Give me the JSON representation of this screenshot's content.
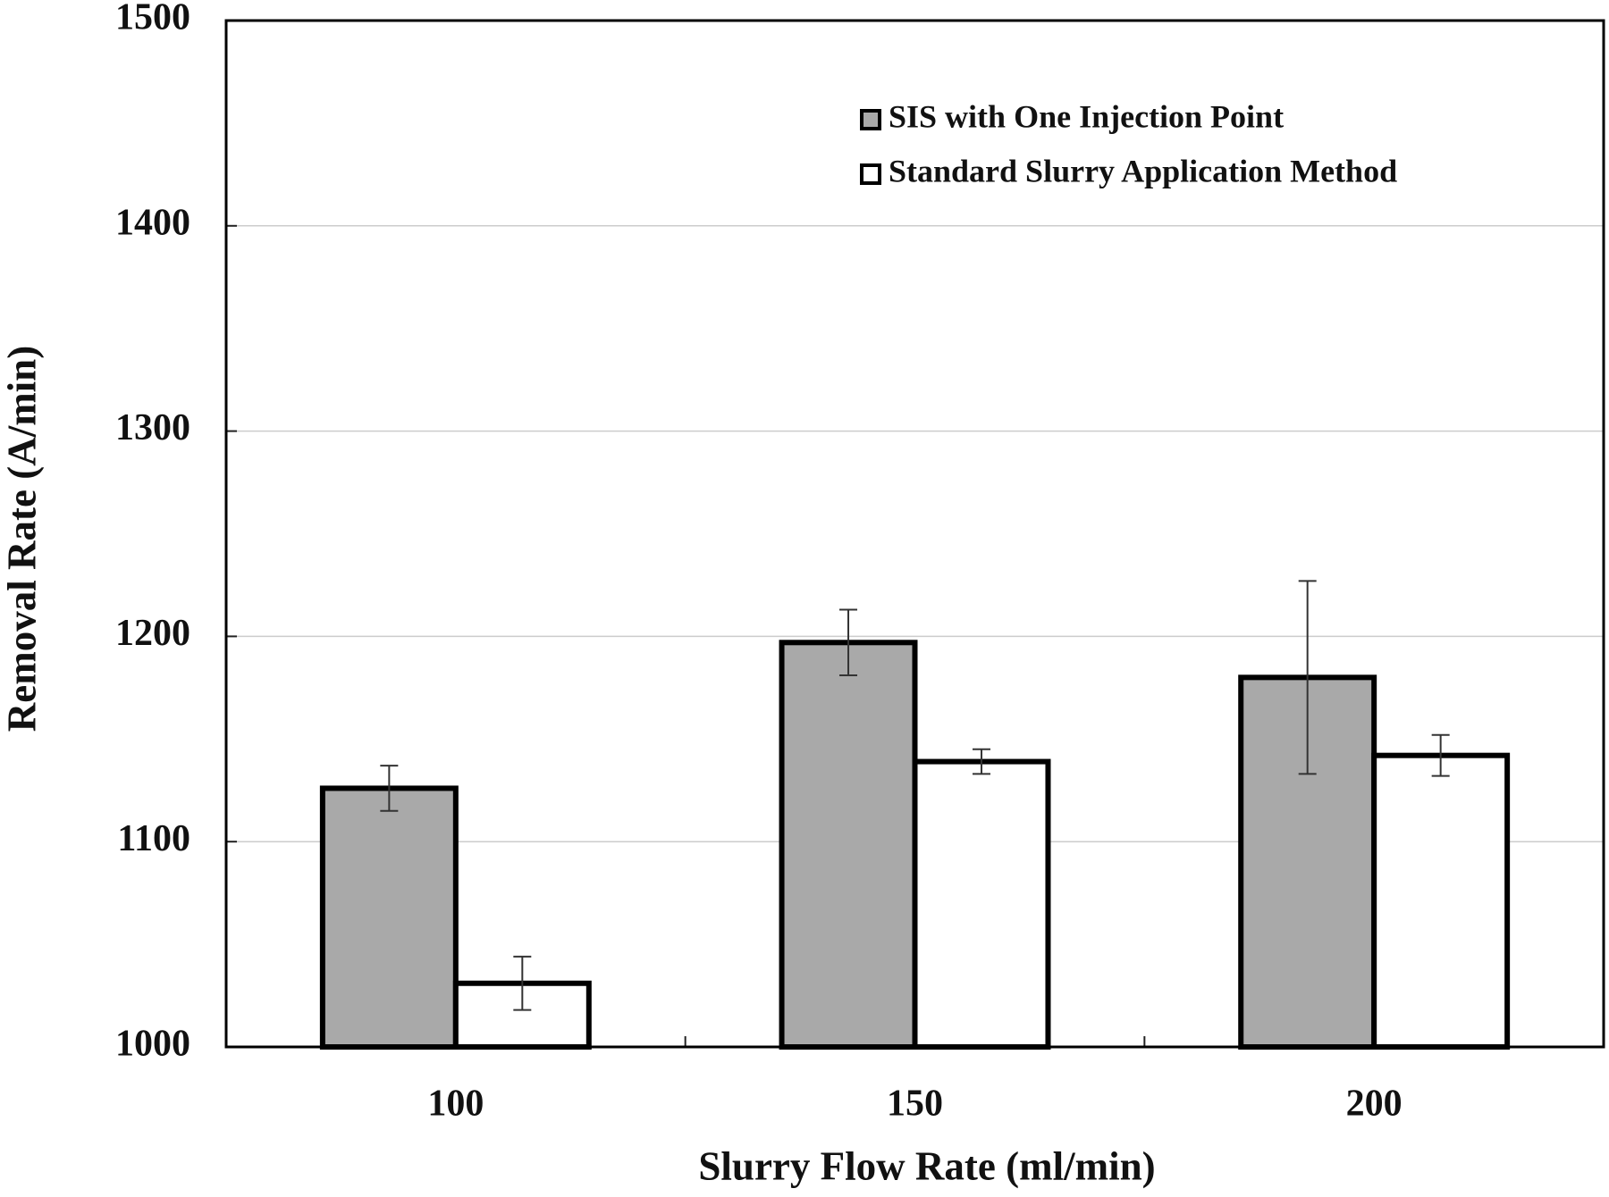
{
  "chart_data": {
    "type": "bar",
    "x_label": "Slurry Flow Rate (ml/min)",
    "y_label": "Removal Rate (A/min)",
    "categories": [
      "100",
      "150",
      "200"
    ],
    "series": [
      {
        "name": "SIS with One Injection Point",
        "color": "#a9a9a9",
        "values": [
          1126,
          1197,
          1180
        ],
        "errors": [
          11,
          16,
          47
        ]
      },
      {
        "name": "Standard Slurry Application Method",
        "color": "#ffffff",
        "values": [
          1031,
          1139,
          1142
        ],
        "errors": [
          13,
          6,
          10
        ]
      }
    ],
    "ylim": [
      1000,
      1500
    ],
    "yticks": [
      1000,
      1100,
      1200,
      1300,
      1400,
      1500
    ],
    "grid": true,
    "legend": "upper right"
  }
}
